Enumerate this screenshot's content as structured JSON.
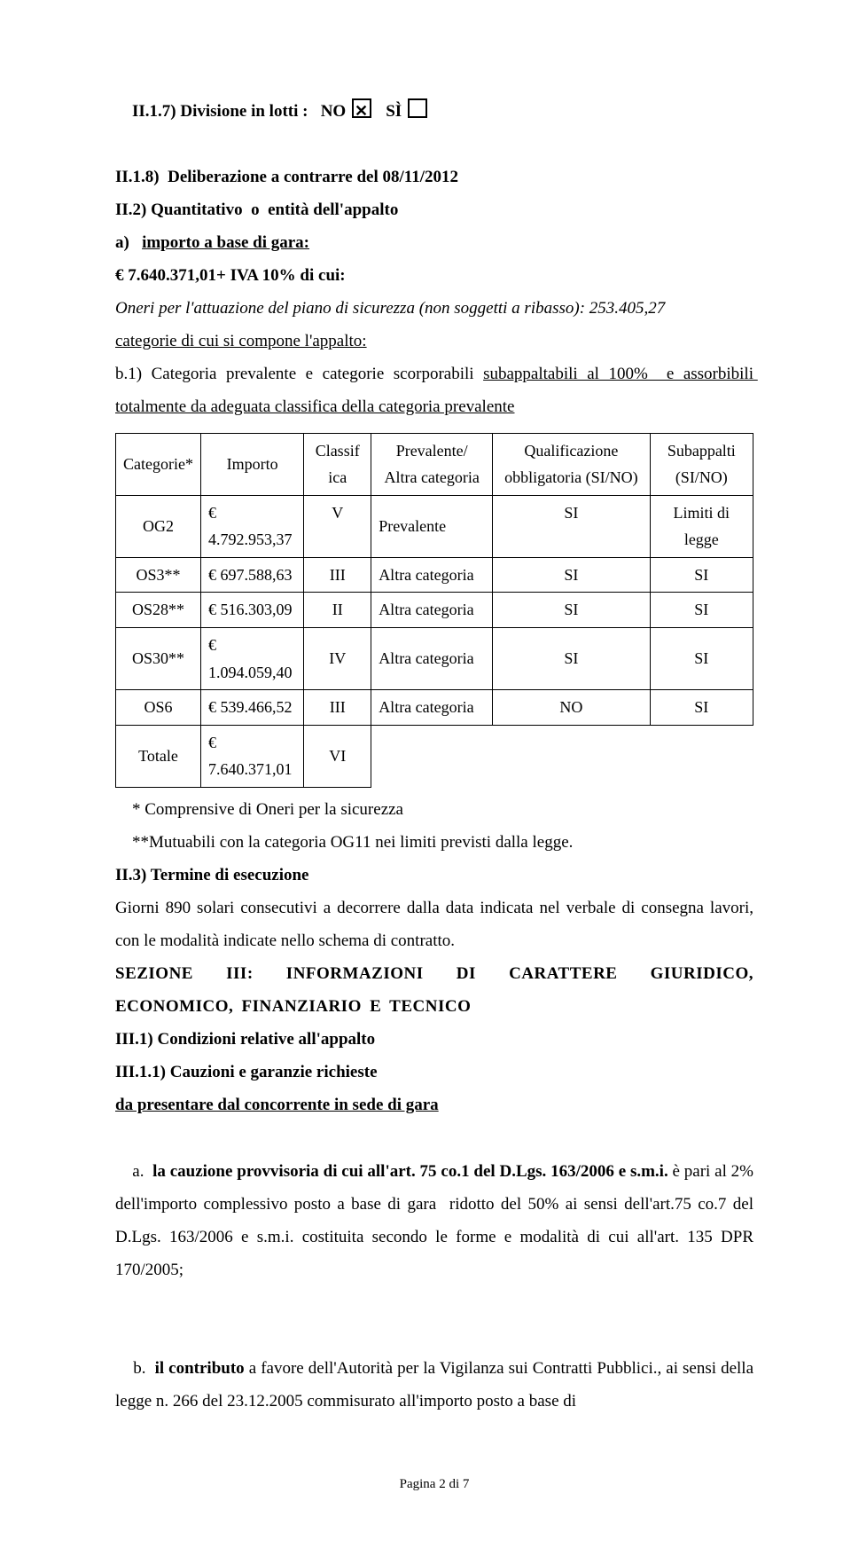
{
  "s1": {
    "line1_pre": "II.1.7) Divisione in lotti :   NO ",
    "line1_mid": "   SÌ ",
    "line2": "II.1.8)  Deliberazione a contrarre del 08/11/2012",
    "line3": "II.2) Quantitativo  o  entità dell'appalto",
    "line4_a": "a)   ",
    "line4_b": "importo a base di gara:",
    "line5": "€ 7.640.371,01+ IVA 10% di cui:",
    "line6": "Oneri per l'attuazione del piano di sicurezza (non soggetti a ribasso): 253.405,27",
    "line7": "categorie di cui si compone l'appalto:",
    "line8_a": "b.1) Categoria prevalente e categorie scorporabili ",
    "line8_b": "subappaltabili al 100%  e assorbibili totalmente da adeguata classifica della categoria prevalente"
  },
  "tbl": {
    "h": {
      "cat": "Categorie*",
      "imp": "Importo",
      "cls": "Classif\nica",
      "prev": "Prevalente/\nAltra categoria",
      "qual": "Qualificazione\nobbligatoria\n(SI/NO)",
      "sub": "Subappalti\n(SI/NO)"
    },
    "r0": {
      "cat": "OG2",
      "imp": "€ 4.792.953,37",
      "cls": "V",
      "prev": "Prevalente",
      "qual": "SI",
      "sub": "Limiti di\nlegge"
    },
    "r1": {
      "cat": "OS3**",
      "imp": "€    697.588,63",
      "cls": "III",
      "prev": "Altra categoria",
      "qual": "SI",
      "sub": "SI"
    },
    "r2": {
      "cat": "OS28**",
      "imp": "€    516.303,09",
      "cls": "II",
      "prev": "Altra categoria",
      "qual": "SI",
      "sub": "SI"
    },
    "r3": {
      "cat": "OS30**",
      "imp": "€ 1.094.059,40",
      "cls": "IV",
      "prev": "Altra categoria",
      "qual": "SI",
      "sub": "SI"
    },
    "r4": {
      "cat": "OS6",
      "imp": "€    539.466,52",
      "cls": "III",
      "prev": "Altra categoria",
      "qual": "NO",
      "sub": "SI"
    },
    "r5": {
      "cat": "Totale",
      "imp": "€ 7.640.371,01",
      "cls": "VI",
      "prev": "",
      "qual": "",
      "sub": ""
    }
  },
  "s2": {
    "note1": "    * Comprensive di Oneri per la sicurezza",
    "note2": "    **Mutuabili con la categoria OG11 nei limiti previsti dalla legge.",
    "line9": "II.3) Termine di esecuzione",
    "line10": "Giorni 890 solari consecutivi a decorrere dalla data indicata nel verbale di consegna lavori, con le modalità indicate nello schema di contratto.",
    "line11": "SEZIONE III: INFORMAZIONI DI CARATTERE GIURIDICO, ECONOMICO, FINANZIARIO E TECNICO",
    "line12": "III.1) Condizioni relative all'appalto",
    "line13": "III.1.1) Cauzioni e garanzie richieste",
    "line14": "da presentare dal concorrente in sede di gara",
    "line15_a": "a.  ",
    "line15_b": "la cauzione provvisoria di cui all'art. 75 co.1 del D.Lgs. 163/2006 e s.m.i.",
    "line15_c": " è pari al 2% dell'importo complessivo posto a base di gara  ridotto del 50% ai sensi dell'art.75 co.7 del D.Lgs. 163/2006 e s.m.i. costituita secondo le forme e modalità di cui all'art. 135 DPR 170/2005;",
    "line16_a": "b.  ",
    "line16_b": "il contributo ",
    "line16_c": "a favore dell'Autorità per la Vigilanza sui Contratti Pubblici., ai sensi della legge n. 266 del 23.12.2005 commisurato all'importo posto a base di"
  },
  "footer": "Pagina 2 di 7"
}
